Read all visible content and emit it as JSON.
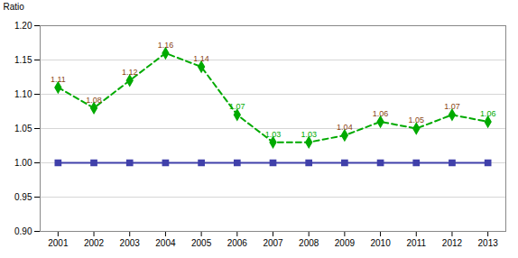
{
  "chart_data": {
    "type": "line",
    "y_label": "Ratio",
    "x": [
      2001,
      2002,
      2003,
      2004,
      2005,
      2006,
      2007,
      2008,
      2009,
      2010,
      2011,
      2012,
      2013
    ],
    "series": [
      {
        "color": "#4040aa",
        "marker": "square",
        "line_style": "solid",
        "values": [
          1.0,
          1.0,
          1.0,
          1.0,
          1.0,
          1.0,
          1.0,
          1.0,
          1.0,
          1.0,
          1.0,
          1.0,
          1.0
        ]
      },
      {
        "color": "#00aa00",
        "marker": "diamond",
        "line_style": "dashed",
        "values": [
          1.11,
          1.08,
          1.12,
          1.16,
          1.14,
          1.07,
          1.03,
          1.03,
          1.04,
          1.06,
          1.05,
          1.07,
          1.06
        ]
      }
    ],
    "annotations": [
      {
        "text": "1.11",
        "x": 2001,
        "y": 1.11,
        "color": "#8b4513"
      },
      {
        "text": "1.08",
        "x": 2002,
        "y": 1.08,
        "color": "#8b4513"
      },
      {
        "text": "1.12",
        "x": 2003,
        "y": 1.12,
        "color": "#8b4513"
      },
      {
        "text": "1.16",
        "x": 2004,
        "y": 1.16,
        "color": "#8b4513"
      },
      {
        "text": "1.14",
        "x": 2005,
        "y": 1.14,
        "color": "#8b4513"
      },
      {
        "text": "1.07",
        "x": 2006,
        "y": 1.07,
        "color": "#00aa00"
      },
      {
        "text": "1.03",
        "x": 2007,
        "y": 1.03,
        "color": "#00aa00"
      },
      {
        "text": "1.03",
        "x": 2008,
        "y": 1.03,
        "color": "#00aa00"
      },
      {
        "text": "1.04",
        "x": 2009,
        "y": 1.04,
        "color": "#8b4513"
      },
      {
        "text": "1.06",
        "x": 2010,
        "y": 1.06,
        "color": "#8b4513"
      },
      {
        "text": "1.05",
        "x": 2011,
        "y": 1.05,
        "color": "#8b4513"
      },
      {
        "text": "1.07",
        "x": 2012,
        "y": 1.07,
        "color": "#8b4513"
      },
      {
        "text": "1.06",
        "x": 2013,
        "y": 1.06,
        "color": "#00aa00"
      }
    ],
    "xlim": [
      2000.5,
      2013.5
    ],
    "xticks": [
      2001,
      2002,
      2003,
      2004,
      2005,
      2006,
      2007,
      2008,
      2009,
      2010,
      2011,
      2012,
      2013
    ],
    "ylim": [
      0.9,
      1.2
    ],
    "yticks": [
      {
        "value": 0.9,
        "label": "0.90"
      },
      0.95,
      {
        "value": 1.0,
        "label": "1.00"
      },
      1.05,
      {
        "value": 1.1,
        "label": "1.10"
      },
      1.15,
      {
        "value": 1.2,
        "label": "1.20"
      }
    ],
    "grid": "y"
  }
}
